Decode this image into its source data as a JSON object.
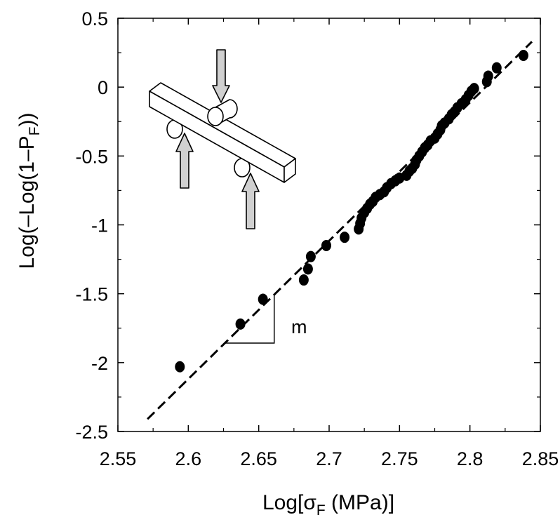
{
  "chart_data": {
    "type": "scatter",
    "xlabel": {
      "main": "Log[σ",
      "sub": "F",
      "tail": " (MPa)]"
    },
    "ylabel": {
      "main": "Log(–Log(1–P",
      "sub": "F",
      "tail": "))"
    },
    "xlim": [
      2.55,
      2.85
    ],
    "ylim": [
      -2.5,
      0.5
    ],
    "x_ticks": [
      2.55,
      2.6,
      2.65,
      2.7,
      2.75,
      2.8,
      2.85
    ],
    "x_tick_labels": [
      "2.55",
      "2.6",
      "2.65",
      "2.7",
      "2.75",
      "2.8",
      "2.85"
    ],
    "y_ticks": [
      0.5,
      0,
      -0.5,
      -1,
      -1.5,
      -2,
      -2.5
    ],
    "y_tick_labels": [
      "0.5",
      "0",
      "-0.5",
      "-1",
      "-1.5",
      "-2",
      "-2.5"
    ],
    "grid": false,
    "legend": "none",
    "series": [
      {
        "marker": "filled-circle",
        "color": "#000000",
        "x": [
          2.594,
          2.637,
          2.653,
          2.682,
          2.685,
          2.687,
          2.698,
          2.711,
          2.721,
          2.722,
          2.723,
          2.725,
          2.727,
          2.729,
          2.731,
          2.733,
          2.736,
          2.739,
          2.741,
          2.744,
          2.747,
          2.75,
          2.755,
          2.757,
          2.759,
          2.761,
          2.762,
          2.764,
          2.766,
          2.768,
          2.77,
          2.772,
          2.775,
          2.777,
          2.779,
          2.78,
          2.782,
          2.785,
          2.787,
          2.789,
          2.791,
          2.794,
          2.797,
          2.799,
          2.801,
          2.803,
          2.812,
          2.813,
          2.819,
          2.838
        ],
        "y": [
          -2.03,
          -1.72,
          -1.54,
          -1.4,
          -1.32,
          -1.23,
          -1.15,
          -1.09,
          -1.03,
          -0.99,
          -0.95,
          -0.91,
          -0.88,
          -0.85,
          -0.83,
          -0.8,
          -0.78,
          -0.76,
          -0.73,
          -0.7,
          -0.68,
          -0.66,
          -0.64,
          -0.61,
          -0.59,
          -0.56,
          -0.53,
          -0.5,
          -0.47,
          -0.44,
          -0.42,
          -0.39,
          -0.37,
          -0.34,
          -0.31,
          -0.28,
          -0.26,
          -0.23,
          -0.2,
          -0.18,
          -0.15,
          -0.12,
          -0.09,
          -0.06,
          -0.03,
          -0.01,
          0.04,
          0.08,
          0.14,
          0.23
        ]
      }
    ],
    "fit_line": {
      "style": "dashed",
      "x": [
        2.571,
        2.844
      ],
      "y": [
        -2.41,
        0.33
      ]
    },
    "annotation_text": "m"
  },
  "inset": {
    "icon": "three-point-bend-test-icon"
  }
}
